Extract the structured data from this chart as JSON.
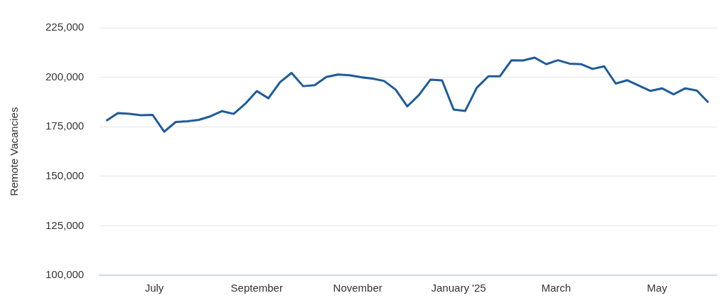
{
  "chart_data": {
    "type": "line",
    "ylabel": "Remote Vacancies",
    "x": [
      "2024-06-02",
      "2024-06-09",
      "2024-06-16",
      "2024-06-23",
      "2024-06-30",
      "2024-07-07",
      "2024-07-14",
      "2024-07-21",
      "2024-07-28",
      "2024-08-04",
      "2024-08-11",
      "2024-08-18",
      "2024-08-25",
      "2024-09-01",
      "2024-09-08",
      "2024-09-15",
      "2024-09-22",
      "2024-09-29",
      "2024-10-06",
      "2024-10-13",
      "2024-10-20",
      "2024-10-27",
      "2024-11-03",
      "2024-11-10",
      "2024-11-17",
      "2024-11-24",
      "2024-12-01",
      "2024-12-08",
      "2024-12-15",
      "2024-12-22",
      "2024-12-29",
      "2025-01-05",
      "2025-01-12",
      "2025-01-19",
      "2025-01-26",
      "2025-02-02",
      "2025-02-09",
      "2025-02-16",
      "2025-02-23",
      "2025-03-02",
      "2025-03-09",
      "2025-03-16",
      "2025-03-23",
      "2025-03-30",
      "2025-04-06",
      "2025-04-13",
      "2025-04-20",
      "2025-04-27",
      "2025-05-04",
      "2025-05-11",
      "2025-05-18",
      "2025-05-25",
      "2025-06-01"
    ],
    "series": [
      {
        "color": "#1f5c99",
        "values": [
          178000,
          181900,
          181500,
          180800,
          181000,
          172500,
          177400,
          177800,
          178500,
          180300,
          182900,
          181500,
          186600,
          193000,
          189400,
          197500,
          202200,
          195500,
          196000,
          200100,
          201400,
          201000,
          200000,
          199300,
          198100,
          193700,
          185300,
          191000,
          198800,
          198400,
          183700,
          183000,
          194700,
          200500,
          200500,
          208600,
          208500,
          209900,
          206600,
          208600,
          206900,
          206600,
          204200,
          205500,
          196800,
          198500,
          195800,
          193100,
          194400,
          191400,
          194400,
          193300,
          187300
        ]
      }
    ],
    "xlim": [
      "2024-05-29",
      "2025-06-06"
    ],
    "xticks": [
      {
        "value": "2024-07-01",
        "label": "July"
      },
      {
        "value": "2024-09-01",
        "label": "September"
      },
      {
        "value": "2024-11-01",
        "label": "November"
      },
      {
        "value": "2025-01-01",
        "label": "January '25"
      },
      {
        "value": "2025-03-01",
        "label": "March"
      },
      {
        "value": "2025-05-01",
        "label": "May"
      }
    ],
    "ylim": [
      100000,
      225000
    ],
    "yticks": [
      {
        "value": 100000,
        "label": "100,000"
      },
      {
        "value": 125000,
        "label": "125,000"
      },
      {
        "value": 150000,
        "label": "150,000"
      },
      {
        "value": 175000,
        "label": "175,000"
      },
      {
        "value": 200000,
        "label": "200,000"
      },
      {
        "value": 225000,
        "label": "225,000"
      }
    ],
    "grid": "y",
    "legend": false,
    "marker": "none",
    "line_style": "solid"
  }
}
